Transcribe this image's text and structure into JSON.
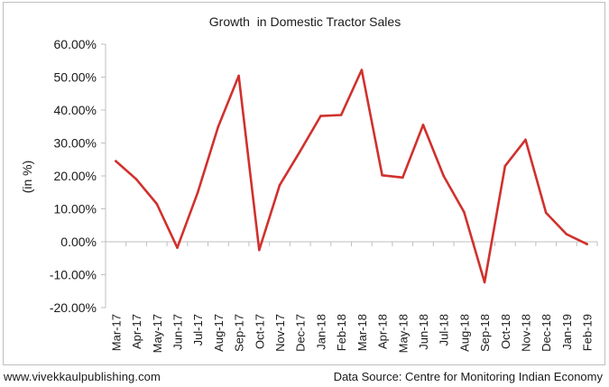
{
  "chart_data": {
    "type": "line",
    "title": "Growth  in Domestic Tractor Sales",
    "xlabel": "",
    "ylabel": "(in %)",
    "ylim": [
      -20,
      60
    ],
    "y_ticks": [
      "60.00%",
      "50.00%",
      "40.00%",
      "30.00%",
      "20.00%",
      "10.00%",
      "0.00%",
      "-10.00%",
      "-20.00%"
    ],
    "y_tick_values": [
      60,
      50,
      40,
      30,
      20,
      10,
      0,
      -10,
      -20
    ],
    "categories": [
      "Mar-17",
      "Apr-17",
      "May-17",
      "Jun-17",
      "Jul-17",
      "Aug-17",
      "Sep-17",
      "Oct-17",
      "Nov-17",
      "Dec-17",
      "Jan-18",
      "Feb-18",
      "Mar-18",
      "Apr-18",
      "May-18",
      "Jun-18",
      "Jul-18",
      "Aug-18",
      "Sep-18",
      "Oct-18",
      "Nov-18",
      "Dec-18",
      "Jan-19",
      "Feb-19"
    ],
    "series": [
      {
        "name": "",
        "color": "#d0312d",
        "values": [
          24.5,
          19.0,
          11.5,
          -1.8,
          15.0,
          35.0,
          50.4,
          -2.5,
          17.2,
          27.5,
          38.2,
          38.5,
          52.2,
          20.2,
          19.5,
          35.5,
          20.0,
          9.0,
          -12.3,
          23.0,
          31.0,
          8.8,
          2.3,
          -0.7
        ]
      }
    ],
    "grid": false,
    "legend": "none"
  },
  "footer": {
    "website": "www.vivekkaulpublishing.com",
    "source": "Data Source: Centre for Monitoring Indian Economy"
  },
  "colors": {
    "line": "#d0312d",
    "axis": "#bfbfbf",
    "text": "#1a1a1a"
  }
}
